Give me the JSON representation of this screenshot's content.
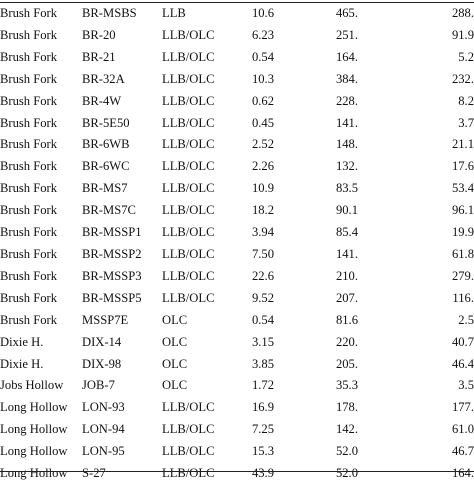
{
  "table": {
    "rows": [
      {
        "location": "Brush Fork",
        "site": "BR-MSBS",
        "method": "LLB",
        "v1": "10.6",
        "v2": "465.",
        "v3": "288."
      },
      {
        "location": "Brush Fork",
        "site": "BR-20",
        "method": "LLB/OLC",
        "v1": "6.23",
        "v2": "251.",
        "v3": "91.9"
      },
      {
        "location": "Brush Fork",
        "site": "BR-21",
        "method": "LLB/OLC",
        "v1": "0.54",
        "v2": "164.",
        "v3": "5.2"
      },
      {
        "location": "Brush Fork",
        "site": "BR-32A",
        "method": "LLB/OLC",
        "v1": "10.3",
        "v2": "384.",
        "v3": "232."
      },
      {
        "location": "Brush Fork",
        "site": "BR-4W",
        "method": "LLB/OLC",
        "v1": "0.62",
        "v2": "228.",
        "v3": "8.2"
      },
      {
        "location": "Brush Fork",
        "site": "BR-5E50",
        "method": "LLB/OLC",
        "v1": "0.45",
        "v2": "141.",
        "v3": "3.7"
      },
      {
        "location": "Brush Fork",
        "site": "BR-6WB",
        "method": "LLB/OLC",
        "v1": "2.52",
        "v2": "148.",
        "v3": "21.1"
      },
      {
        "location": "Brush Fork",
        "site": "BR-6WC",
        "method": "LLB/OLC",
        "v1": "2.26",
        "v2": "132.",
        "v3": "17.6"
      },
      {
        "location": "Brush Fork",
        "site": "BR-MS7",
        "method": "LLB/OLC",
        "v1": "10.9",
        "v2": "83.5",
        "v3": "53.4"
      },
      {
        "location": "Brush Fork",
        "site": "BR-MS7C",
        "method": "LLB/OLC",
        "v1": "18.2",
        "v2": "90.1",
        "v3": "96.1"
      },
      {
        "location": "Brush Fork",
        "site": "BR-MSSP1",
        "method": "LLB/OLC",
        "v1": "3.94",
        "v2": "85.4",
        "v3": "19.9"
      },
      {
        "location": "Brush Fork",
        "site": "BR-MSSP2",
        "method": "LLB/OLC",
        "v1": "7.50",
        "v2": "141.",
        "v3": "61.8"
      },
      {
        "location": "Brush Fork",
        "site": "BR-MSSP3",
        "method": "LLB/OLC",
        "v1": "22.6",
        "v2": "210.",
        "v3": "279."
      },
      {
        "location": "Brush Fork",
        "site": "BR-MSSP5",
        "method": "LLB/OLC",
        "v1": "9.52",
        "v2": "207.",
        "v3": "116."
      },
      {
        "location": "Brush Fork",
        "site": "MSSP7E",
        "method": "OLC",
        "v1": "0.54",
        "v2": "81.6",
        "v3": "2.5"
      },
      {
        "location": "Dixie H.",
        "site": "DIX-14",
        "method": "OLC",
        "v1": "3.15",
        "v2": "220.",
        "v3": "40.7"
      },
      {
        "location": "Dixie H.",
        "site": "DIX-98",
        "method": "OLC",
        "v1": "3.85",
        "v2": "205.",
        "v3": "46.4"
      },
      {
        "location": "Jobs Hollow",
        "site": "JOB-7",
        "method": "OLC",
        "v1": "1.72",
        "v2": "35.3",
        "v3": "3.5"
      },
      {
        "location": "Long Hollow",
        "site": "LON-93",
        "method": "LLB/OLC",
        "v1": "16.9",
        "v2": "178.",
        "v3": "177."
      },
      {
        "location": "Long Hollow",
        "site": "LON-94",
        "method": "LLB/OLC",
        "v1": "7.25",
        "v2": "142.",
        "v3": "61.0"
      },
      {
        "location": "Long Hollow",
        "site": "LON-95",
        "method": "LLB/OLC",
        "v1": "15.3",
        "v2": "52.0",
        "v3": "46.7"
      },
      {
        "location": "Long Hollow",
        "site": "S-27",
        "method": "LLB/OLC",
        "v1": "43.9",
        "v2": "52.0",
        "v3": "164."
      }
    ]
  }
}
